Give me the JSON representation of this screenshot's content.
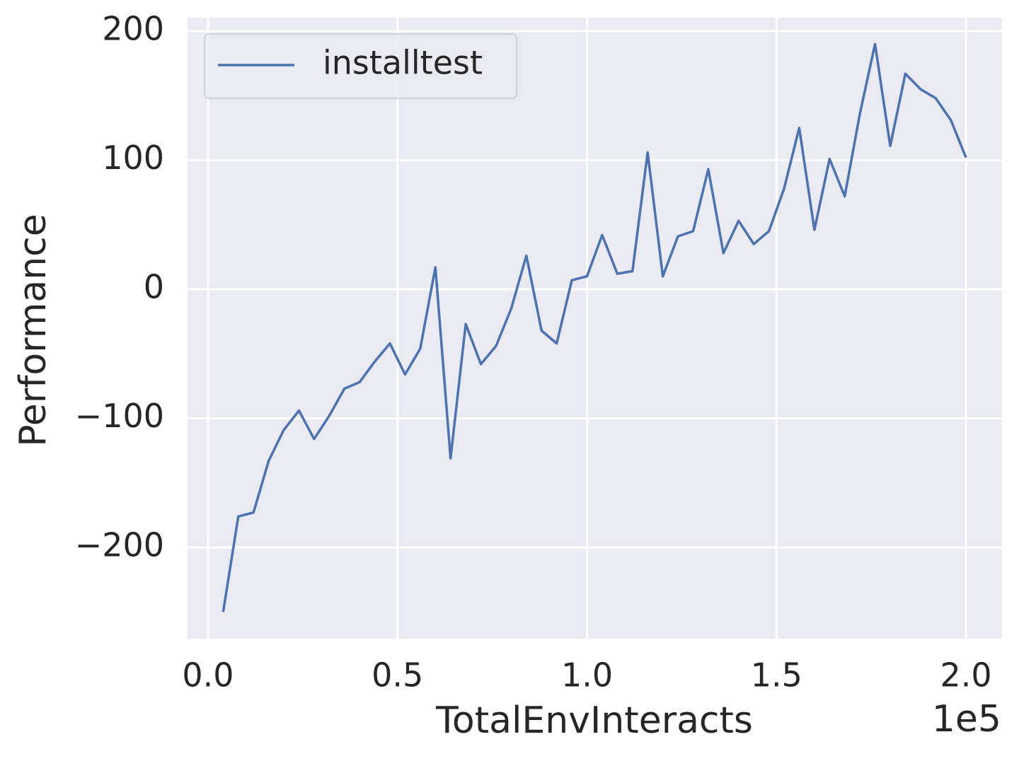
{
  "chart_data": {
    "type": "line",
    "x_label": "TotalEnvInteracts",
    "y_label": "Performance",
    "x_offset_label": "1e5",
    "x": [
      0.04,
      0.08,
      0.12,
      0.16,
      0.2,
      0.24,
      0.28,
      0.32,
      0.36,
      0.4,
      0.44,
      0.48,
      0.52,
      0.56,
      0.6,
      0.64,
      0.68,
      0.72,
      0.76,
      0.8,
      0.84,
      0.88,
      0.92,
      0.96,
      1.0,
      1.04,
      1.08,
      1.12,
      1.16,
      1.2,
      1.24,
      1.28,
      1.32,
      1.36,
      1.4,
      1.44,
      1.48,
      1.52,
      1.56,
      1.6,
      1.64,
      1.68,
      1.72,
      1.76,
      1.8,
      1.84,
      1.88,
      1.92,
      1.96,
      2.0
    ],
    "series": [
      {
        "name": "installtest",
        "color": "#4c72b0",
        "values": [
          -250,
          -176,
          -173,
          -133,
          -109,
          -94,
          -116,
          -98,
          -77,
          -72,
          -56,
          -42,
          -66,
          -46,
          17,
          -131,
          -27,
          -58,
          -44,
          -15,
          26,
          -32,
          -42,
          7,
          10,
          42,
          12,
          14,
          106,
          10,
          41,
          45,
          93,
          28,
          53,
          35,
          45,
          78,
          125,
          46,
          101,
          72,
          136,
          190,
          111,
          167,
          155,
          148,
          131,
          102
        ]
      }
    ],
    "xlim": [
      -0.054,
      2.095
    ],
    "ylim": [
      -270.7,
      210.4
    ],
    "xticks": [
      {
        "value": 0,
        "label": "0.0"
      },
      0.5,
      {
        "value": 1,
        "label": "1.0"
      },
      1.5,
      {
        "value": 2,
        "label": "2.0"
      }
    ],
    "yticks": [
      {
        "value": -200,
        "label": "−200"
      },
      {
        "value": -100,
        "label": "−100"
      },
      0,
      100,
      200
    ],
    "grid": true,
    "legend": "upper left"
  }
}
